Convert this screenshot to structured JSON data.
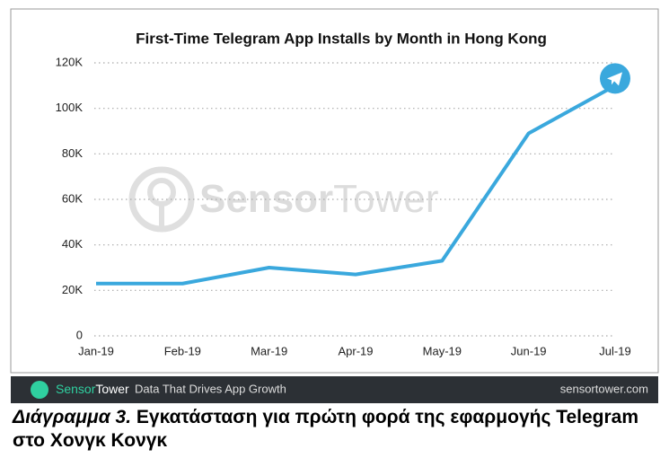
{
  "chart_data": {
    "type": "line",
    "title": "First-Time Telegram App Installs by Month in Hong Kong",
    "categories": [
      "Jan-19",
      "Feb-19",
      "Mar-19",
      "Apr-19",
      "May-19",
      "Jun-19",
      "Jul-19"
    ],
    "values": [
      23000,
      23000,
      30000,
      27000,
      33000,
      89000,
      110000
    ],
    "color": "#3aa8dd",
    "ylim": [
      0,
      120000
    ],
    "yticks": [
      0,
      {
        "value": 20000,
        "label": "20K"
      },
      {
        "value": 40000,
        "label": "40K"
      },
      {
        "value": 60000,
        "label": "60K"
      },
      {
        "value": 80000,
        "label": "80K"
      },
      {
        "value": 100000,
        "label": "100K"
      },
      {
        "value": 120000,
        "label": "120K"
      }
    ],
    "grid": true
  },
  "watermark": {
    "bold": "Sensor",
    "light": "Tower"
  },
  "footer": {
    "brand_bold": "Sensor",
    "brand_light": "Tower",
    "tagline": "Data That Drives App Growth",
    "url": "sensortower.com"
  },
  "caption": {
    "label": "Διάγραμμα 3.",
    "text": "Εγκατάσταση για πρώτη φορά της εφαρμογής Telegram στο Χονγκ Κονγκ"
  }
}
